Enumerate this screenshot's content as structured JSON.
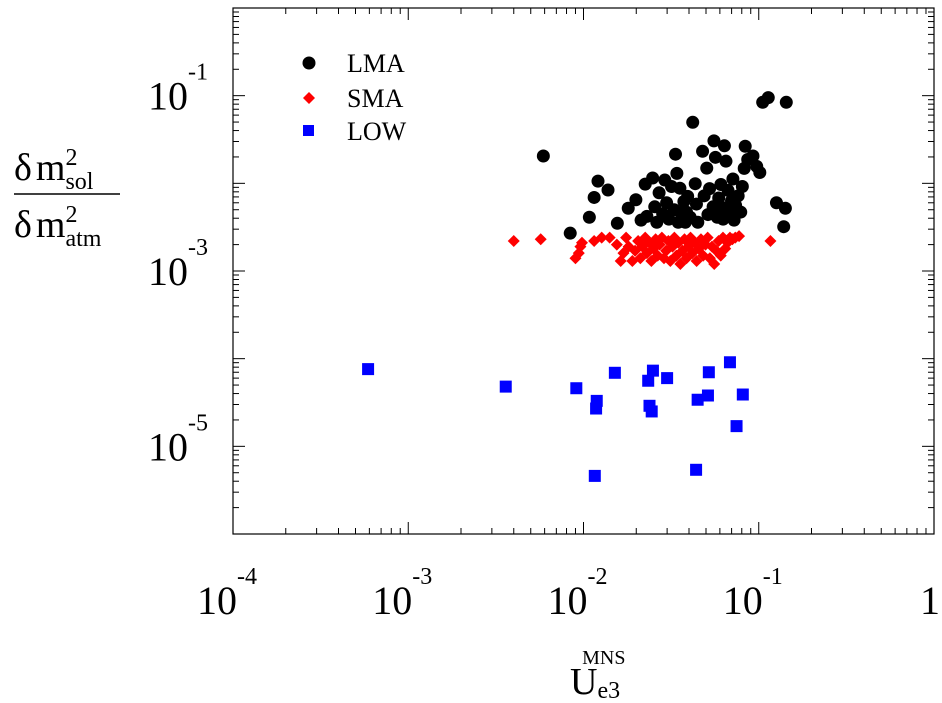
{
  "chart_data": {
    "type": "scatter",
    "title": "",
    "xlabel": {
      "base": "U",
      "sub": "e3",
      "sup": "MNS"
    },
    "ylabel": {
      "numerator": {
        "delta": "δ",
        "m": "m",
        "sup": "2",
        "sub": "sol"
      },
      "denominator": {
        "delta": "δ",
        "m": "m",
        "sup": "2",
        "sub": "atm"
      }
    },
    "xscale": "log",
    "yscale": "log",
    "xlim": [
      0.0001,
      1
    ],
    "ylim": [
      1e-06,
      1
    ],
    "grid": false,
    "legend_position": "top-left",
    "x_tick_labels": [
      {
        "value": 0.0001,
        "base": "10",
        "exp": "-4"
      },
      {
        "value": 0.001,
        "base": "10",
        "exp": "-3"
      },
      {
        "value": 0.01,
        "base": "10",
        "exp": "-2"
      },
      {
        "value": 0.1,
        "base": "10",
        "exp": "-1"
      },
      {
        "value": 1,
        "base": "1",
        "exp": ""
      }
    ],
    "y_tick_labels": [
      {
        "value": 0.1,
        "base": "10",
        "exp": "-1"
      },
      {
        "value": 0.001,
        "base": "10",
        "exp": "-3"
      },
      {
        "value": 1e-05,
        "base": "10",
        "exp": "-5"
      }
    ],
    "series": [
      {
        "name": "LMA",
        "marker": "circle",
        "color": "#000000",
        "points": [
          [
            0.0059,
            0.0205
          ],
          [
            0.0084,
            0.0027
          ],
          [
            0.0108,
            0.0041
          ],
          [
            0.0115,
            0.0069
          ],
          [
            0.0121,
            0.0106
          ],
          [
            0.0138,
            0.0084
          ],
          [
            0.0156,
            0.0035
          ],
          [
            0.018,
            0.0052
          ],
          [
            0.0199,
            0.0065
          ],
          [
            0.0213,
            0.0038
          ],
          [
            0.0225,
            0.0098
          ],
          [
            0.023,
            0.0042
          ],
          [
            0.0248,
            0.0115
          ],
          [
            0.0255,
            0.0054
          ],
          [
            0.0262,
            0.0036
          ],
          [
            0.027,
            0.0078
          ],
          [
            0.0283,
            0.0045
          ],
          [
            0.0291,
            0.0109
          ],
          [
            0.0298,
            0.006
          ],
          [
            0.0307,
            0.0039
          ],
          [
            0.0318,
            0.0092
          ],
          [
            0.0329,
            0.005
          ],
          [
            0.0335,
            0.0215
          ],
          [
            0.0341,
            0.013
          ],
          [
            0.0347,
            0.0036
          ],
          [
            0.0355,
            0.0088
          ],
          [
            0.0362,
            0.0046
          ],
          [
            0.0374,
            0.0062
          ],
          [
            0.0381,
            0.0036
          ],
          [
            0.0387,
            0.0047
          ],
          [
            0.0393,
            0.0071
          ],
          [
            0.0406,
            0.0041
          ],
          [
            0.042,
            0.0497
          ],
          [
            0.0434,
            0.0099
          ],
          [
            0.0441,
            0.0058
          ],
          [
            0.0449,
            0.0036
          ],
          [
            0.0478,
            0.0232
          ],
          [
            0.0488,
            0.0072
          ],
          [
            0.0505,
            0.0149
          ],
          [
            0.0513,
            0.0044
          ],
          [
            0.0524,
            0.0087
          ],
          [
            0.0549,
            0.0054
          ],
          [
            0.0555,
            0.0305
          ],
          [
            0.0566,
            0.0198
          ],
          [
            0.058,
            0.0041
          ],
          [
            0.0591,
            0.0068
          ],
          [
            0.0608,
            0.0097
          ],
          [
            0.0619,
            0.0053
          ],
          [
            0.0626,
            0.0039
          ],
          [
            0.0637,
            0.0268
          ],
          [
            0.065,
            0.0179
          ],
          [
            0.0668,
            0.0083
          ],
          [
            0.0684,
            0.0047
          ],
          [
            0.0699,
            0.0063
          ],
          [
            0.0712,
            0.0112
          ],
          [
            0.0723,
            0.0038
          ],
          [
            0.0738,
            0.0056
          ],
          [
            0.0763,
            0.0072
          ],
          [
            0.0789,
            0.0047
          ],
          [
            0.0806,
            0.0092
          ],
          [
            0.0826,
            0.0148
          ],
          [
            0.0837,
            0.0265
          ],
          [
            0.0865,
            0.0187
          ],
          [
            0.0927,
            0.0205
          ],
          [
            0.0974,
            0.0156
          ],
          [
            0.1014,
            0.0133
          ],
          [
            0.1053,
            0.084
          ],
          [
            0.1133,
            0.095
          ],
          [
            0.1262,
            0.006
          ],
          [
            0.1388,
            0.0032
          ],
          [
            0.1419,
            0.0052
          ],
          [
            0.1436,
            0.084
          ]
        ]
      },
      {
        "name": "SMA",
        "marker": "diamond",
        "color": "#ff0000",
        "points": [
          [
            0.004,
            0.0022
          ],
          [
            0.0057,
            0.0023
          ],
          [
            0.009,
            0.0014
          ],
          [
            0.0094,
            0.0016
          ],
          [
            0.0096,
            0.0019
          ],
          [
            0.0098,
            0.0021
          ],
          [
            0.0115,
            0.0022
          ],
          [
            0.0127,
            0.0024
          ],
          [
            0.0141,
            0.0024
          ],
          [
            0.0155,
            0.002
          ],
          [
            0.0163,
            0.0013
          ],
          [
            0.0169,
            0.0016
          ],
          [
            0.0175,
            0.0024
          ],
          [
            0.0181,
            0.0019
          ],
          [
            0.019,
            0.0013
          ],
          [
            0.0197,
            0.0017
          ],
          [
            0.0205,
            0.0022
          ],
          [
            0.0211,
            0.0014
          ],
          [
            0.0217,
            0.0019
          ],
          [
            0.0225,
            0.0024
          ],
          [
            0.023,
            0.0016
          ],
          [
            0.0237,
            0.0021
          ],
          [
            0.0244,
            0.0013
          ],
          [
            0.0251,
            0.0018
          ],
          [
            0.0258,
            0.0023
          ],
          [
            0.0265,
            0.0015
          ],
          [
            0.0272,
            0.002
          ],
          [
            0.028,
            0.0024
          ],
          [
            0.0288,
            0.0014
          ],
          [
            0.0296,
            0.0017
          ],
          [
            0.0305,
            0.0022
          ],
          [
            0.0313,
            0.0013
          ],
          [
            0.0322,
            0.0019
          ],
          [
            0.033,
            0.0024
          ],
          [
            0.0339,
            0.0015
          ],
          [
            0.0348,
            0.0021
          ],
          [
            0.0357,
            0.0012
          ],
          [
            0.0367,
            0.0017
          ],
          [
            0.0377,
            0.0023
          ],
          [
            0.0387,
            0.0014
          ],
          [
            0.0397,
            0.0019
          ],
          [
            0.0408,
            0.0024
          ],
          [
            0.0418,
            0.0016
          ],
          [
            0.043,
            0.0021
          ],
          [
            0.0442,
            0.0013
          ],
          [
            0.0455,
            0.0018
          ],
          [
            0.0468,
            0.0023
          ],
          [
            0.0482,
            0.0015
          ],
          [
            0.0497,
            0.002
          ],
          [
            0.0511,
            0.0024
          ],
          [
            0.0526,
            0.0014
          ],
          [
            0.0541,
            0.0019
          ],
          [
            0.0557,
            0.0012
          ],
          [
            0.0573,
            0.0017
          ],
          [
            0.059,
            0.0022
          ],
          [
            0.0607,
            0.0015
          ],
          [
            0.0625,
            0.0024
          ],
          [
            0.0644,
            0.0018
          ],
          [
            0.0664,
            0.0021
          ],
          [
            0.0685,
            0.0024
          ],
          [
            0.0707,
            0.0023
          ],
          [
            0.0735,
            0.0024
          ],
          [
            0.0772,
            0.0025
          ],
          [
            0.1166,
            0.0022
          ]
        ]
      },
      {
        "name": "LOW",
        "marker": "square",
        "color": "#0000ff",
        "points": [
          [
            0.00059,
            7.6e-05
          ],
          [
            0.0036,
            4.8e-05
          ],
          [
            0.0091,
            4.6e-05
          ],
          [
            0.0116,
            4.6e-06
          ],
          [
            0.0118,
            2.7e-05
          ],
          [
            0.0119,
            3.3e-05
          ],
          [
            0.0151,
            6.9e-05
          ],
          [
            0.0234,
            5.6e-05
          ],
          [
            0.0238,
            2.9e-05
          ],
          [
            0.0245,
            2.5e-05
          ],
          [
            0.0249,
            7.3e-05
          ],
          [
            0.03,
            6e-05
          ],
          [
            0.0439,
            5.4e-06
          ],
          [
            0.0448,
            3.4e-05
          ],
          [
            0.0513,
            3.8e-05
          ],
          [
            0.0519,
            7e-05
          ],
          [
            0.0685,
            9.1e-05
          ],
          [
            0.0747,
            1.7e-05
          ],
          [
            0.0811,
            3.9e-05
          ]
        ]
      }
    ]
  }
}
